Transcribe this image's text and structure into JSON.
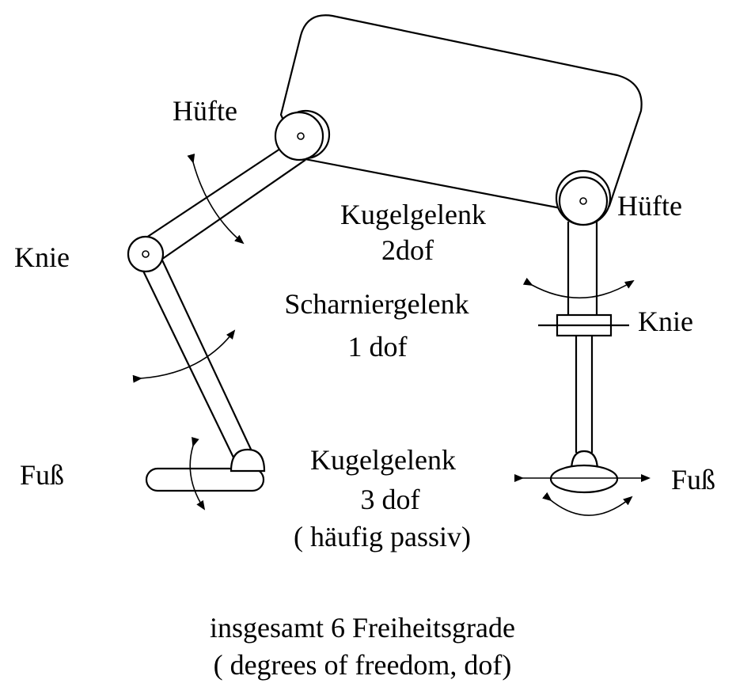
{
  "labels": {
    "left_hip": "Hüfte",
    "right_hip": "Hüfte",
    "left_knee": "Knie",
    "right_knee": "Knie",
    "left_foot": "Fuß",
    "right_foot": "Fuß",
    "hip_joint_line1": "Kugelgelenk",
    "hip_joint_line2": "2dof",
    "knee_joint_line1": "Scharniergelenk",
    "knee_joint_line2": "1 dof",
    "foot_joint_line1": "Kugelgelenk",
    "foot_joint_line2": "3 dof",
    "foot_joint_line3": "( häufig passiv)",
    "summary_line1": "insgesamt 6 Freiheitsgrade",
    "summary_line2": "( degrees of freedom, dof)"
  }
}
